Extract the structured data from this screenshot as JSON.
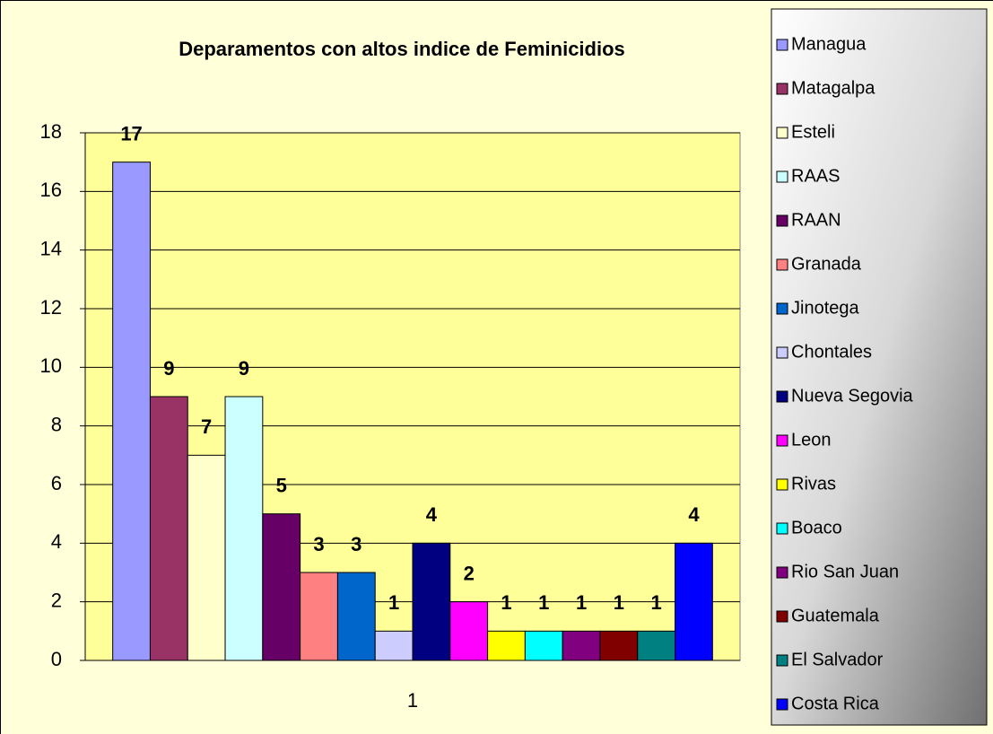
{
  "chart_data": {
    "type": "bar",
    "title": "Deparamentos con altos indice de Feminicidios",
    "categories": [
      "1"
    ],
    "series": [
      {
        "name": "Managua",
        "color": "#9999FF",
        "values": [
          17
        ]
      },
      {
        "name": "Matagalpa",
        "color": "#993366",
        "values": [
          9
        ]
      },
      {
        "name": "Esteli",
        "color": "#FFFFCC",
        "values": [
          7
        ]
      },
      {
        "name": "RAAS",
        "color": "#CCFFFF",
        "values": [
          9
        ]
      },
      {
        "name": "RAAN",
        "color": "#660066",
        "values": [
          5
        ]
      },
      {
        "name": "Granada",
        "color": "#FF8080",
        "values": [
          3
        ]
      },
      {
        "name": "Jinotega",
        "color": "#0066CC",
        "values": [
          3
        ]
      },
      {
        "name": "Chontales",
        "color": "#CCCCFF",
        "values": [
          1
        ]
      },
      {
        "name": "Nueva Segovia",
        "color": "#000080",
        "values": [
          4
        ]
      },
      {
        "name": "Leon",
        "color": "#FF00FF",
        "values": [
          2
        ]
      },
      {
        "name": "Rivas",
        "color": "#FFFF00",
        "values": [
          1
        ]
      },
      {
        "name": "Boaco",
        "color": "#00FFFF",
        "values": [
          1
        ]
      },
      {
        "name": "Rio San Juan",
        "color": "#800080",
        "values": [
          1
        ]
      },
      {
        "name": "Guatemala",
        "color": "#800000",
        "values": [
          1
        ]
      },
      {
        "name": "El Salvador",
        "color": "#008080",
        "values": [
          1
        ]
      },
      {
        "name": "Costa Rica",
        "color": "#0000FF",
        "values": [
          4
        ]
      }
    ],
    "ylim": [
      0,
      18
    ],
    "yticks": [
      0,
      2,
      4,
      6,
      8,
      10,
      12,
      14,
      16,
      18
    ],
    "grid": true,
    "legend": "right"
  }
}
